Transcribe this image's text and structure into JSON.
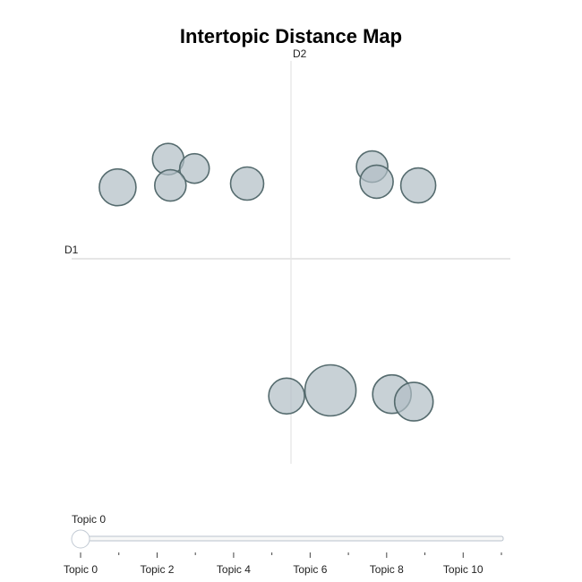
{
  "chart_data": {
    "type": "scatter",
    "title": "Intertopic Distance Map",
    "xlabel": "D1",
    "ylabel": "D2",
    "x_range": [
      -10,
      10
    ],
    "y_range": [
      -10,
      10
    ],
    "grid": false,
    "points": [
      {
        "x": -7.9,
        "y": 3.8,
        "size": 20.5
      },
      {
        "x": -5.6,
        "y": 5.3,
        "size": 17.5
      },
      {
        "x": -4.4,
        "y": 4.8,
        "size": 16.5
      },
      {
        "x": -5.5,
        "y": 3.9,
        "size": 17.5
      },
      {
        "x": -2.0,
        "y": 4.0,
        "size": 18.5
      },
      {
        "x": 3.7,
        "y": 4.9,
        "size": 17.5
      },
      {
        "x": 3.9,
        "y": 4.1,
        "size": 18.5
      },
      {
        "x": 5.8,
        "y": 3.9,
        "size": 19.5
      },
      {
        "x": -0.2,
        "y": -7.3,
        "size": 20.0
      },
      {
        "x": 1.8,
        "y": -7.0,
        "size": 28.5
      },
      {
        "x": 4.6,
        "y": -7.2,
        "size": 21.5
      },
      {
        "x": 5.6,
        "y": -7.6,
        "size": 21.5
      }
    ],
    "slider": {
      "current_label": "Topic 0",
      "value": 0,
      "min": 0,
      "max": 11,
      "tick_labels": [
        "Topic 0",
        "Topic 2",
        "Topic 4",
        "Topic 6",
        "Topic 8",
        "Topic 10"
      ],
      "tick_values": [
        0,
        2,
        4,
        6,
        8,
        10
      ]
    }
  }
}
